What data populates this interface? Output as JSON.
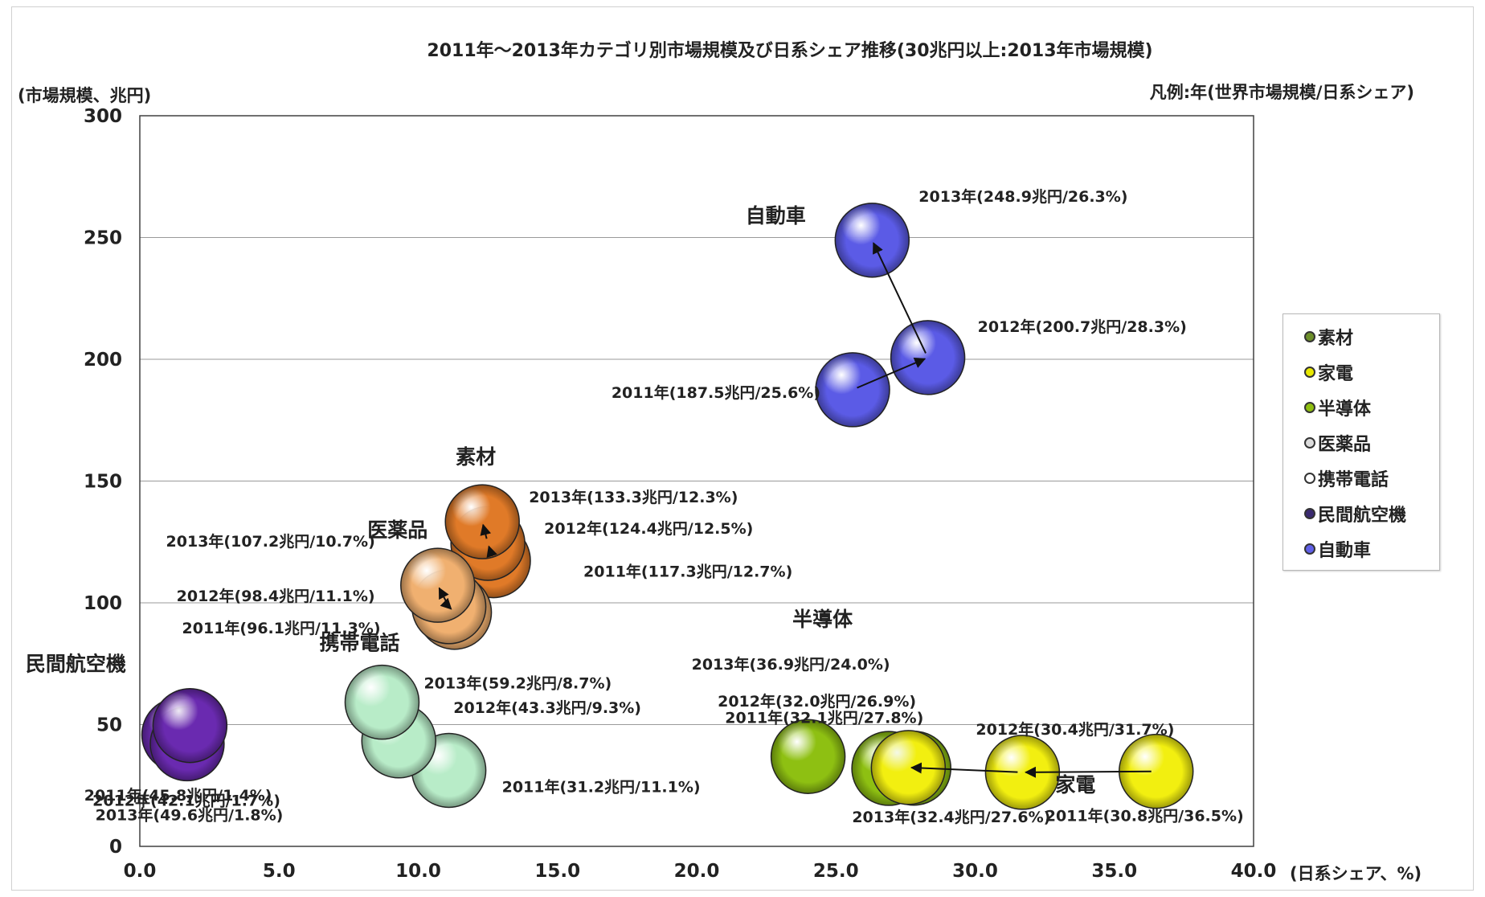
{
  "chart_data": {
    "type": "scatter",
    "title": "2011年～2013年カテゴリ別市場規模及び日系シェア推移(30兆円以上:2013年市場規模)",
    "ylabel": "(市場規模、兆円)",
    "xlabel": "(日系シェア、%)",
    "legend_note": "凡例:年(世界市場規模/日系シェア)",
    "xlim": [
      0,
      40
    ],
    "ylim": [
      0,
      300
    ],
    "x_ticks": [
      "0.0",
      "5.0",
      "10.0",
      "15.0",
      "20.0",
      "25.0",
      "30.0",
      "35.0",
      "40.0"
    ],
    "y_ticks": [
      "0",
      "50",
      "100",
      "150",
      "200",
      "250",
      "300"
    ],
    "grid": "horizontal",
    "legend_position": "right",
    "legend": [
      {
        "name": "素材",
        "color": "#6d8f2a"
      },
      {
        "name": "家電",
        "color": "#e8e800"
      },
      {
        "name": "半導体",
        "color": "#8fbf10"
      },
      {
        "name": "医薬品",
        "color": "#dcdcdc"
      },
      {
        "name": "携帯電話",
        "color": "#ffffff"
      },
      {
        "name": "民間航空機",
        "color": "#3a2a70"
      },
      {
        "name": "自動車",
        "color": "#6060e8"
      }
    ],
    "series": [
      {
        "name": "自動車",
        "color": "#5b5be6",
        "arrow": true,
        "points": [
          {
            "year": 2011,
            "x": 25.6,
            "y": 187.5,
            "label": "2011年(187.5兆円/25.6%)"
          },
          {
            "year": 2012,
            "x": 28.3,
            "y": 200.7,
            "label": "2012年(200.7兆円/28.3%)"
          },
          {
            "year": 2013,
            "x": 26.3,
            "y": 248.9,
            "label": "2013年(248.9兆円/26.3%)"
          }
        ]
      },
      {
        "name": "素材",
        "color": "#e07a28",
        "arrow": true,
        "points": [
          {
            "year": 2011,
            "x": 12.7,
            "y": 117.3,
            "label": "2011年(117.3兆円/12.7%)"
          },
          {
            "year": 2012,
            "x": 12.5,
            "y": 124.4,
            "label": "2012年(124.4兆円/12.5%)"
          },
          {
            "year": 2013,
            "x": 12.3,
            "y": 133.3,
            "label": "2013年(133.3兆円/12.3%)"
          }
        ]
      },
      {
        "name": "医薬品",
        "color": "#f0b070",
        "arrow": true,
        "points": [
          {
            "year": 2011,
            "x": 11.3,
            "y": 96.1,
            "label": "2011年(96.1兆円/11.3%)"
          },
          {
            "year": 2012,
            "x": 11.1,
            "y": 98.4,
            "label": "2012年(98.4兆円/11.1%)"
          },
          {
            "year": 2013,
            "x": 10.7,
            "y": 107.2,
            "label": "2013年(107.2兆円/10.7%)"
          }
        ]
      },
      {
        "name": "携帯電話",
        "color": "#b8ecc8",
        "arrow": false,
        "points": [
          {
            "year": 2011,
            "x": 11.1,
            "y": 31.2,
            "label": "2011年(31.2兆円/11.1%)"
          },
          {
            "year": 2012,
            "x": 9.3,
            "y": 43.3,
            "label": "2012年(43.3兆円/9.3%)"
          },
          {
            "year": 2013,
            "x": 8.7,
            "y": 59.2,
            "label": "2013年(59.2兆円/8.7%)"
          }
        ]
      },
      {
        "name": "民間航空機",
        "color": "#6a2ab0",
        "arrow": false,
        "points": [
          {
            "year": 2011,
            "x": 1.4,
            "y": 45.8,
            "label": "2011年(45.8兆円/1.4%)"
          },
          {
            "year": 2012,
            "x": 1.7,
            "y": 42.1,
            "label": "2012年(42.1兆円/1.7%)"
          },
          {
            "year": 2013,
            "x": 1.8,
            "y": 49.6,
            "label": "2013年(49.6兆円/1.8%)"
          }
        ]
      },
      {
        "name": "半導体",
        "color": "#8ec012",
        "arrow": false,
        "points": [
          {
            "year": 2011,
            "x": 27.8,
            "y": 32.1,
            "label": "2011年(32.1兆円/27.8%)"
          },
          {
            "year": 2012,
            "x": 26.9,
            "y": 32.0,
            "label": "2012年(32.0兆円/26.9%)"
          },
          {
            "year": 2013,
            "x": 24.0,
            "y": 36.9,
            "label": "2013年(36.9兆円/24.0%)"
          }
        ]
      },
      {
        "name": "家電",
        "color": "#f2ef10",
        "arrow": true,
        "points": [
          {
            "year": 2011,
            "x": 36.5,
            "y": 30.8,
            "label": "2011年(30.8兆円/36.5%)"
          },
          {
            "year": 2012,
            "x": 31.7,
            "y": 30.4,
            "label": "2012年(30.4兆円/31.7%)"
          },
          {
            "year": 2013,
            "x": 27.6,
            "y": 32.4,
            "label": "2013年(32.4兆円/27.6%)"
          }
        ]
      }
    ]
  }
}
